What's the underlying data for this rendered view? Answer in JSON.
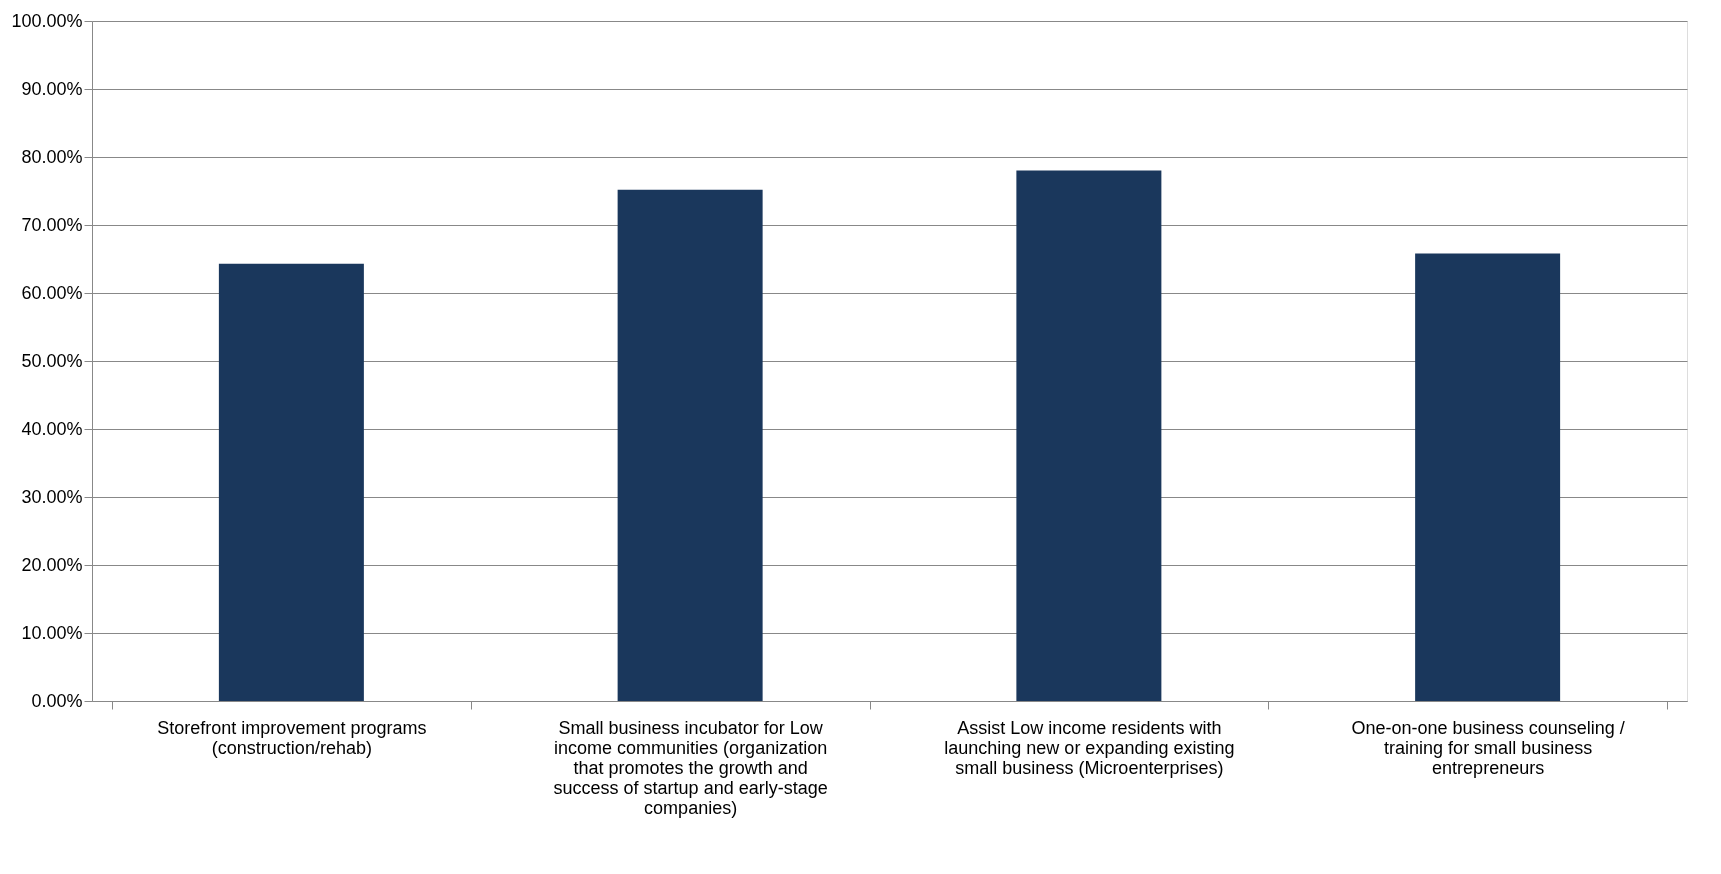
{
  "chart_data": {
    "type": "bar",
    "categories": [
      "Storefront improvement programs (construction/rehab)",
      "Small business incubator for Low income communities (organization that promotes the growth and success of startup and early-stage companies)",
      "Assist Low income residents with launching new or expanding existing small business (Microenterprises)",
      "One-on-one business counseling / training for small business entrepreneurs"
    ],
    "values": [
      64.3,
      75.2,
      78.0,
      65.8
    ],
    "color": "#1a375c",
    "ylim": [
      0,
      100
    ],
    "yticks": [
      {
        "value": 0,
        "label": "0.00%"
      },
      {
        "value": 10,
        "label": "10.00%"
      },
      {
        "value": 20,
        "label": "20.00%"
      },
      {
        "value": 30,
        "label": "30.00%"
      },
      {
        "value": 40,
        "label": "40.00%"
      },
      {
        "value": 50,
        "label": "50.00%"
      },
      {
        "value": 60,
        "label": "60.00%"
      },
      {
        "value": 70,
        "label": "70.00%"
      },
      {
        "value": 80,
        "label": "80.00%"
      },
      {
        "value": 90,
        "label": "90.00%"
      },
      {
        "value": 100,
        "label": "100.00%"
      }
    ],
    "grid": "y"
  }
}
